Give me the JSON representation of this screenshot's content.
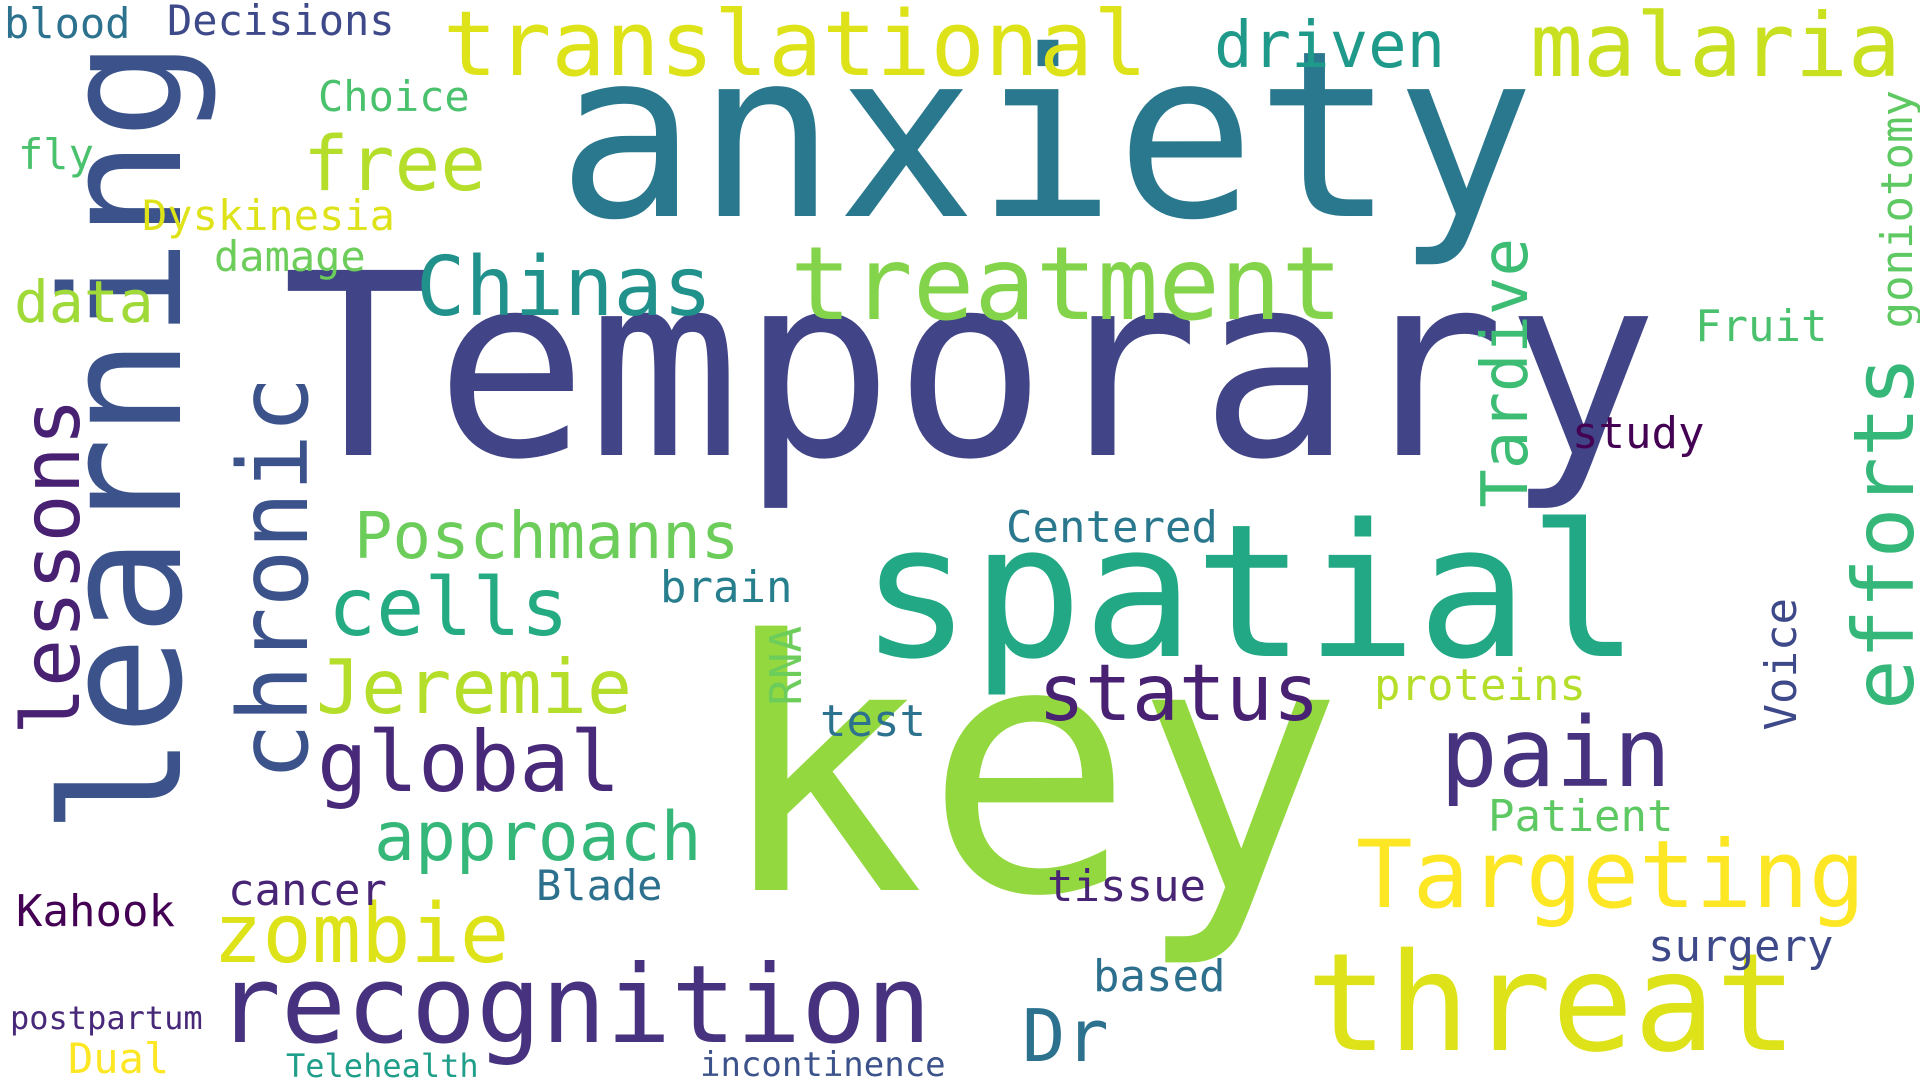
{
  "words": [
    {
      "key": "temporary",
      "text": "Temporary",
      "color": "#414487"
    },
    {
      "key": "anxiety",
      "text": "anxiety",
      "color": "#2a788e"
    },
    {
      "key": "key",
      "text": "key",
      "color": "#94d840"
    },
    {
      "key": "spatial",
      "text": "spatial",
      "color": "#22a884"
    },
    {
      "key": "learning",
      "text": "learning",
      "color": "#3b528b"
    },
    {
      "key": "threat",
      "text": "threat",
      "color": "#dde318"
    },
    {
      "key": "chronic",
      "text": "chronic",
      "color": "#3b528b"
    },
    {
      "key": "recognition",
      "text": "recognition",
      "color": "#46327e"
    },
    {
      "key": "treatment",
      "text": "treatment",
      "color": "#84d44b"
    },
    {
      "key": "translational",
      "text": "translational",
      "color": "#dde318"
    },
    {
      "key": "malaria",
      "text": "malaria",
      "color": "#c8e020"
    },
    {
      "key": "efforts",
      "text": "efforts",
      "color": "#35b779"
    },
    {
      "key": "lessons",
      "text": "lessons",
      "color": "#482173"
    },
    {
      "key": "pain",
      "text": "pain",
      "color": "#46327e"
    },
    {
      "key": "targeting",
      "text": "Targeting",
      "color": "#fde725"
    },
    {
      "key": "zombie",
      "text": "zombie",
      "color": "#dde318"
    },
    {
      "key": "global",
      "text": "global",
      "color": "#482878"
    },
    {
      "key": "chinas",
      "text": "Chinas",
      "color": "#21918c"
    },
    {
      "key": "cells",
      "text": "cells",
      "color": "#25ab82"
    },
    {
      "key": "status",
      "text": "status",
      "color": "#482173"
    },
    {
      "key": "jeremie",
      "text": "Jeremie",
      "color": "#b5de2b"
    },
    {
      "key": "free",
      "text": "free",
      "color": "#b5de2b"
    },
    {
      "key": "dr",
      "text": "Dr",
      "color": "#2c728e"
    },
    {
      "key": "approach",
      "text": "approach",
      "color": "#35b779"
    },
    {
      "key": "poschmanns",
      "text": "Poschmanns",
      "color": "#6ccd5a"
    },
    {
      "key": "driven",
      "text": "driven",
      "color": "#1f9a8a"
    },
    {
      "key": "tardive",
      "text": "Tardive",
      "color": "#3dbc74"
    },
    {
      "key": "data",
      "text": "data",
      "color": "#a0da39"
    },
    {
      "key": "kahook",
      "text": "Kahook",
      "color": "#440154"
    },
    {
      "key": "cancer",
      "text": "cancer",
      "color": "#482475"
    },
    {
      "key": "blade",
      "text": "Blade",
      "color": "#2d708e"
    },
    {
      "key": "tissue",
      "text": "tissue",
      "color": "#482475"
    },
    {
      "key": "surgery",
      "text": "surgery",
      "color": "#3e4989"
    },
    {
      "key": "based",
      "text": "based",
      "color": "#2d708e"
    },
    {
      "key": "patient",
      "text": "Patient",
      "color": "#5ec962"
    },
    {
      "key": "voice",
      "text": "Voice",
      "color": "#3e4989"
    },
    {
      "key": "fruit",
      "text": "Fruit",
      "color": "#4ac16d"
    },
    {
      "key": "goniotomy",
      "text": "goniotomy",
      "color": "#5ec962"
    },
    {
      "key": "study",
      "text": "study",
      "color": "#440154"
    },
    {
      "key": "centered",
      "text": "Centered",
      "color": "#2a788e"
    },
    {
      "key": "brain",
      "text": "brain",
      "color": "#277f8e"
    },
    {
      "key": "proteins",
      "text": "proteins",
      "color": "#b5de2b"
    },
    {
      "key": "rna",
      "text": "RNA",
      "color": "#6ccd5a"
    },
    {
      "key": "test",
      "text": "test",
      "color": "#2c728e"
    },
    {
      "key": "blood",
      "text": "blood",
      "color": "#2c728e"
    },
    {
      "key": "decisions",
      "text": "Decisions",
      "color": "#3e4989"
    },
    {
      "key": "choice",
      "text": "Choice",
      "color": "#4ac16d"
    },
    {
      "key": "fly",
      "text": "fly",
      "color": "#4ac16d"
    },
    {
      "key": "dyskinesia",
      "text": "Dyskinesia",
      "color": "#dde318"
    },
    {
      "key": "damage",
      "text": "damage",
      "color": "#6ccd5a"
    },
    {
      "key": "postpartum",
      "text": "postpartum",
      "color": "#482878"
    },
    {
      "key": "dual",
      "text": "Dual",
      "color": "#fde725"
    },
    {
      "key": "telehealth",
      "text": "Telehealth",
      "color": "#1f9e89"
    },
    {
      "key": "incontinence",
      "text": "incontinence",
      "color": "#3b528b"
    }
  ]
}
